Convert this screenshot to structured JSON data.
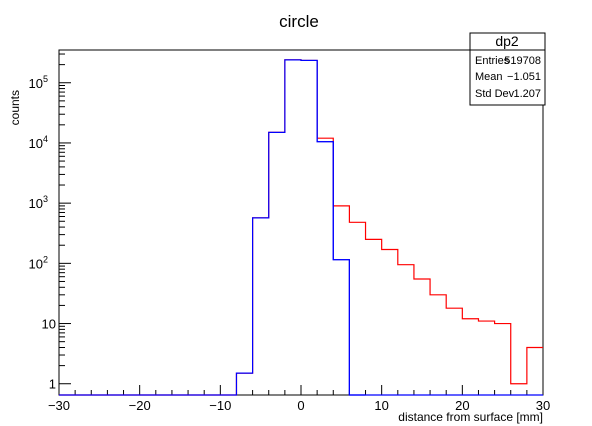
{
  "chart_data": {
    "type": "histogram",
    "title": "circle",
    "xlabel": "distance from surface [mm]",
    "ylabel": "counts",
    "xlim": [
      -30,
      30
    ],
    "ylim": [
      0.65,
      350000
    ],
    "yscale": "log",
    "x_ticks": [
      "−30",
      "−20",
      "−10",
      "0",
      "10",
      "20",
      "30"
    ],
    "y_ticks": [
      {
        "value": 1,
        "label": "1"
      },
      {
        "value": 10,
        "label": "10"
      },
      {
        "value": 100,
        "label": "10",
        "exp": "2"
      },
      {
        "value": 1000,
        "label": "10",
        "exp": "3"
      },
      {
        "value": 10000,
        "label": "10",
        "exp": "4"
      },
      {
        "value": 100000,
        "label": "10",
        "exp": "5"
      }
    ],
    "bin_edges": [
      -30,
      -28,
      -26,
      -24,
      -22,
      -20,
      -18,
      -16,
      -14,
      -12,
      -10,
      -8,
      -6,
      -4,
      -2,
      0,
      2,
      4,
      6,
      8,
      10,
      12,
      14,
      16,
      18,
      20,
      22,
      24,
      26,
      28,
      30
    ],
    "series": [
      {
        "color": "#ff0000",
        "values": [
          0,
          0,
          0,
          0,
          0,
          0,
          0,
          0,
          0,
          0,
          0,
          1.5,
          570,
          15000,
          240000,
          235000,
          12000,
          900,
          480,
          250,
          170,
          95,
          55,
          30,
          18,
          12,
          11,
          10,
          1,
          4
        ]
      },
      {
        "color": "#0000ff",
        "values": [
          0,
          0,
          0,
          0,
          0,
          0,
          0,
          0,
          0,
          0,
          0,
          1.5,
          570,
          15000,
          240000,
          235000,
          10500,
          115,
          0,
          0,
          0,
          0,
          0,
          0,
          0,
          0,
          0,
          0,
          0,
          0
        ]
      }
    ],
    "stats_box": {
      "title": "dp2",
      "rows": [
        {
          "label": "Entries",
          "value": "519708"
        },
        {
          "label": "Mean",
          "value": "−1.051"
        },
        {
          "label": "Std Dev",
          "value": "1.207"
        }
      ]
    }
  }
}
